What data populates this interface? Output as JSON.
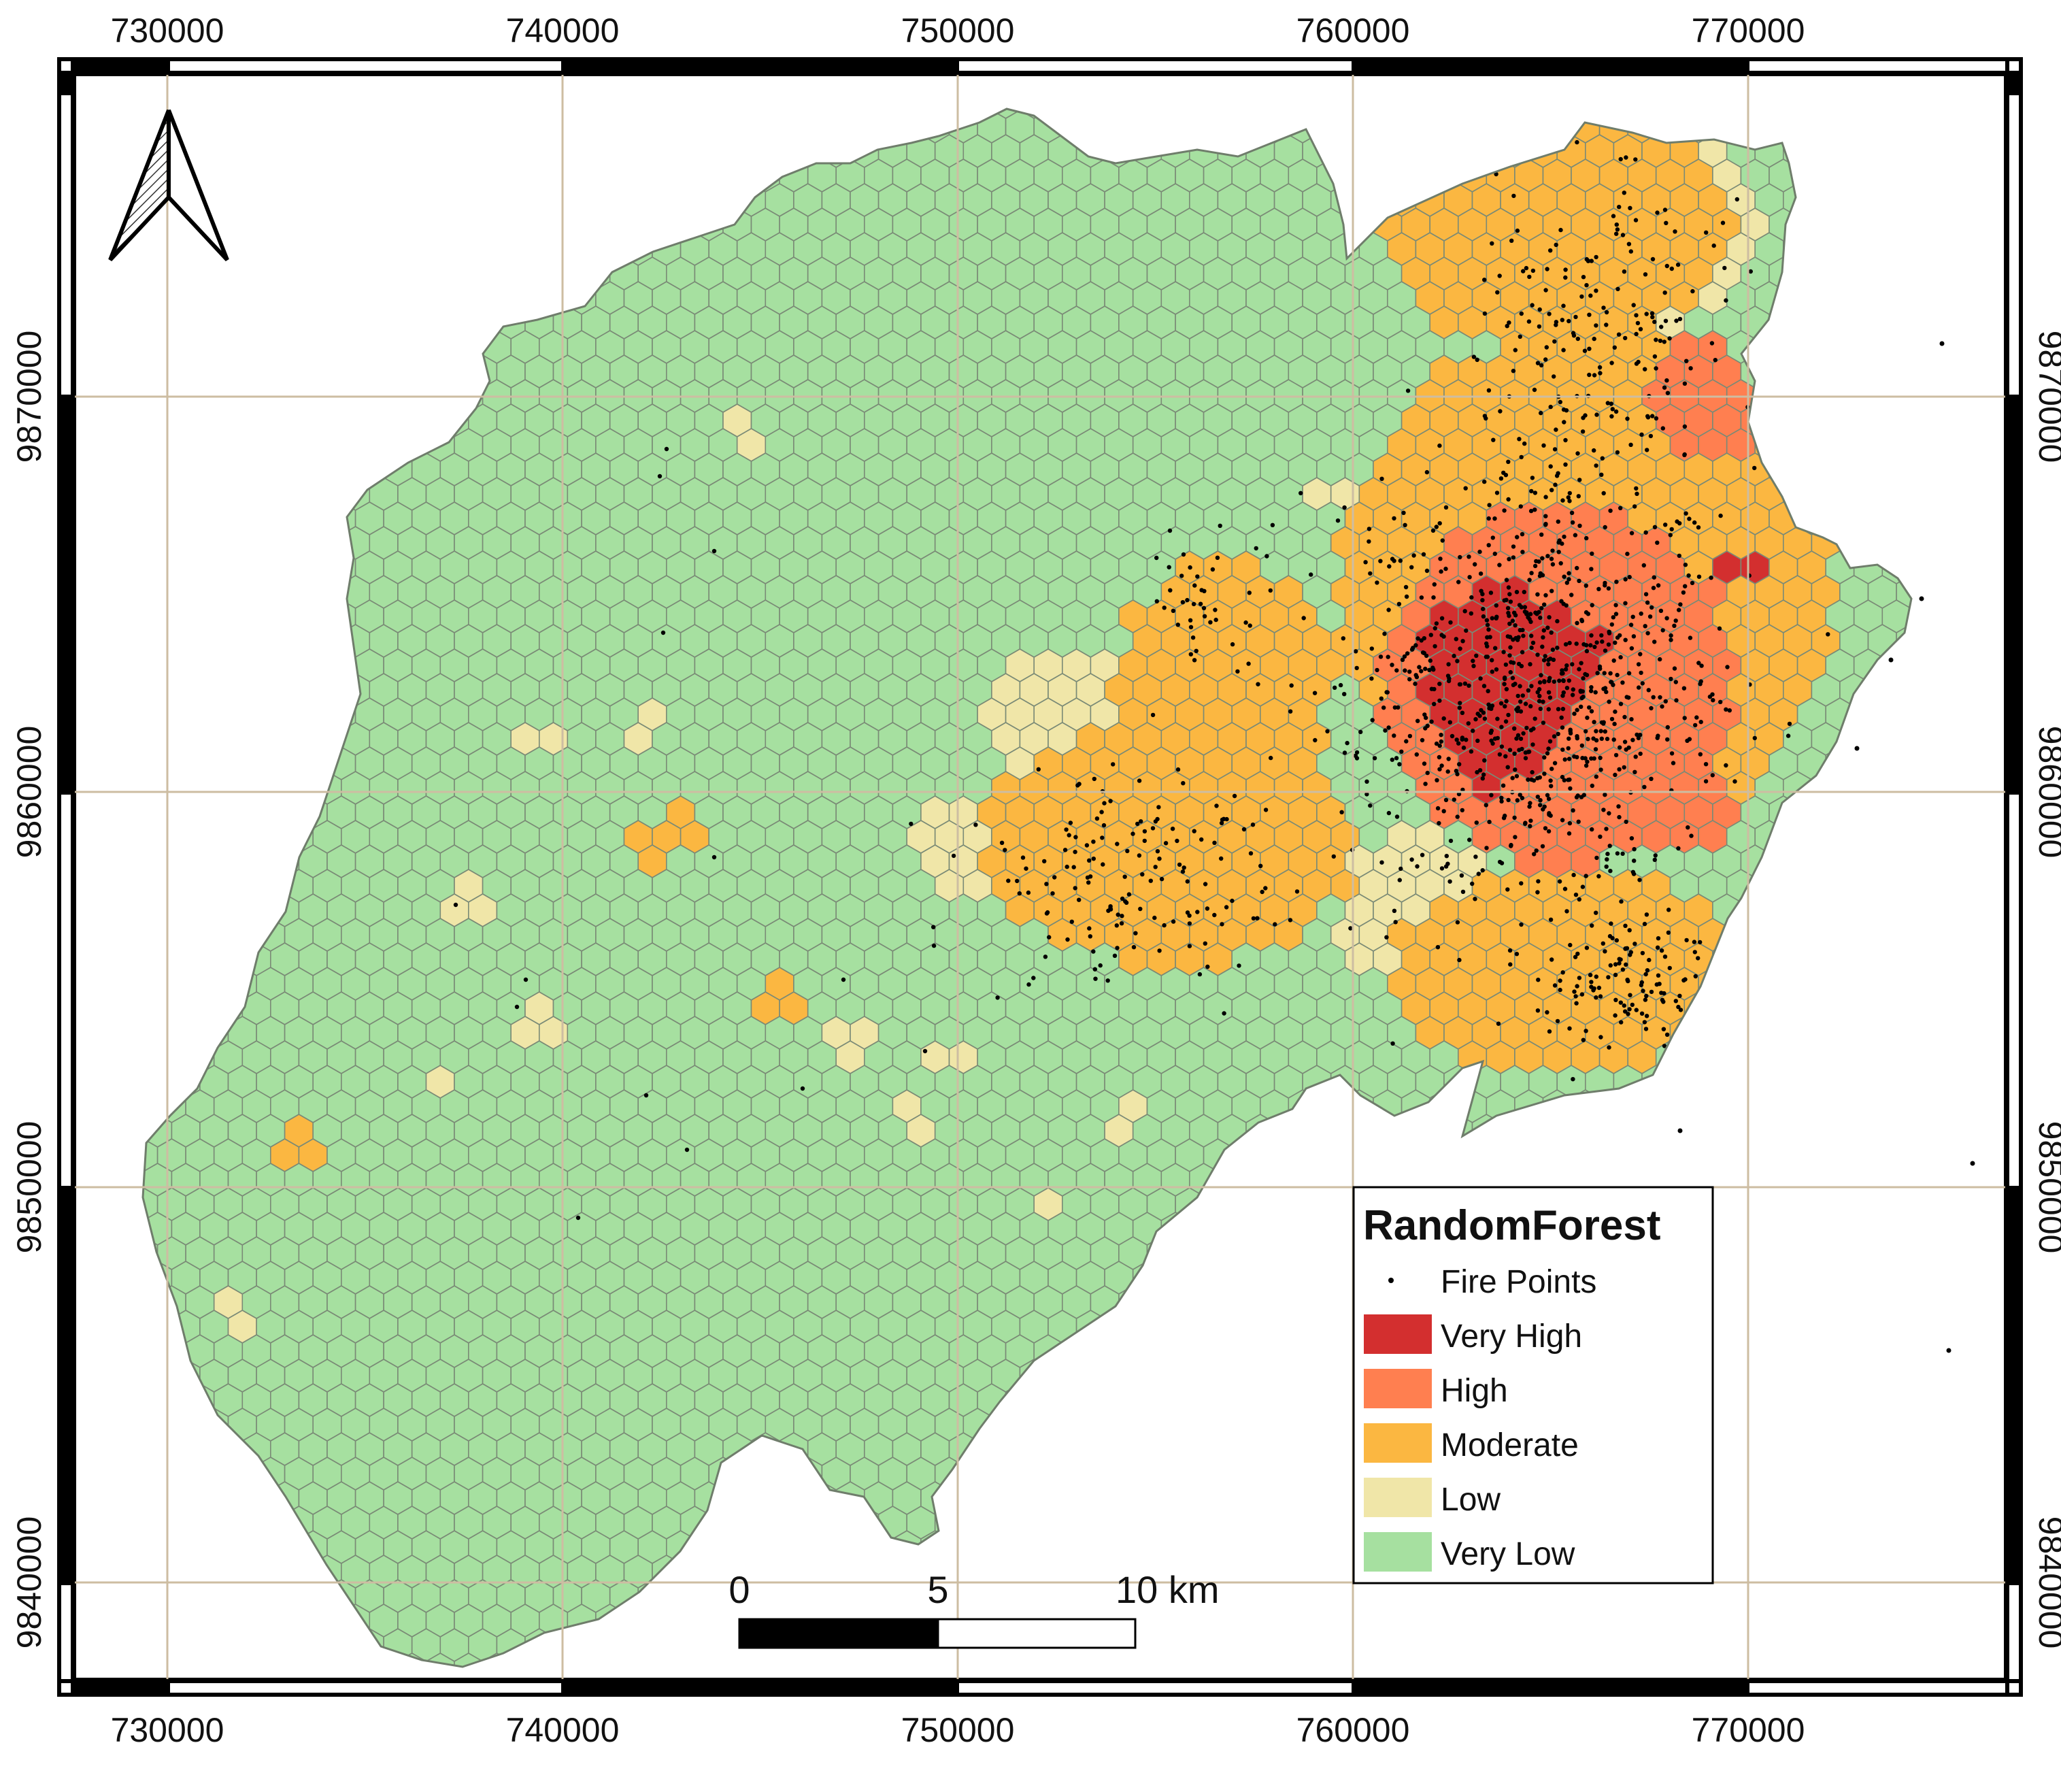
{
  "map": {
    "x_ticks": [
      "730000",
      "740000",
      "750000",
      "760000",
      "770000"
    ],
    "y_ticks": [
      "9870000",
      "9860000",
      "9850000",
      "9840000"
    ]
  },
  "legend": {
    "title": "RandomForest",
    "points_label": "Fire Points",
    "classes": [
      {
        "label": "Very High",
        "color": "#d32f2f"
      },
      {
        "label": "High",
        "color": "#ff7f50"
      },
      {
        "label": "Moderate",
        "color": "#fbb741"
      },
      {
        "label": "Low",
        "color": "#f0e6a8"
      },
      {
        "label": "Very Low",
        "color": "#a6e0a0"
      }
    ]
  },
  "scale_bar": {
    "labels": [
      "0",
      "5",
      "10 km"
    ]
  },
  "colors": {
    "frame": "#000000",
    "grid": "#cdbda2",
    "hex_stroke": "#7a8a76",
    "fire_point": "#000000"
  },
  "north_arrow": "north-arrow-icon"
}
